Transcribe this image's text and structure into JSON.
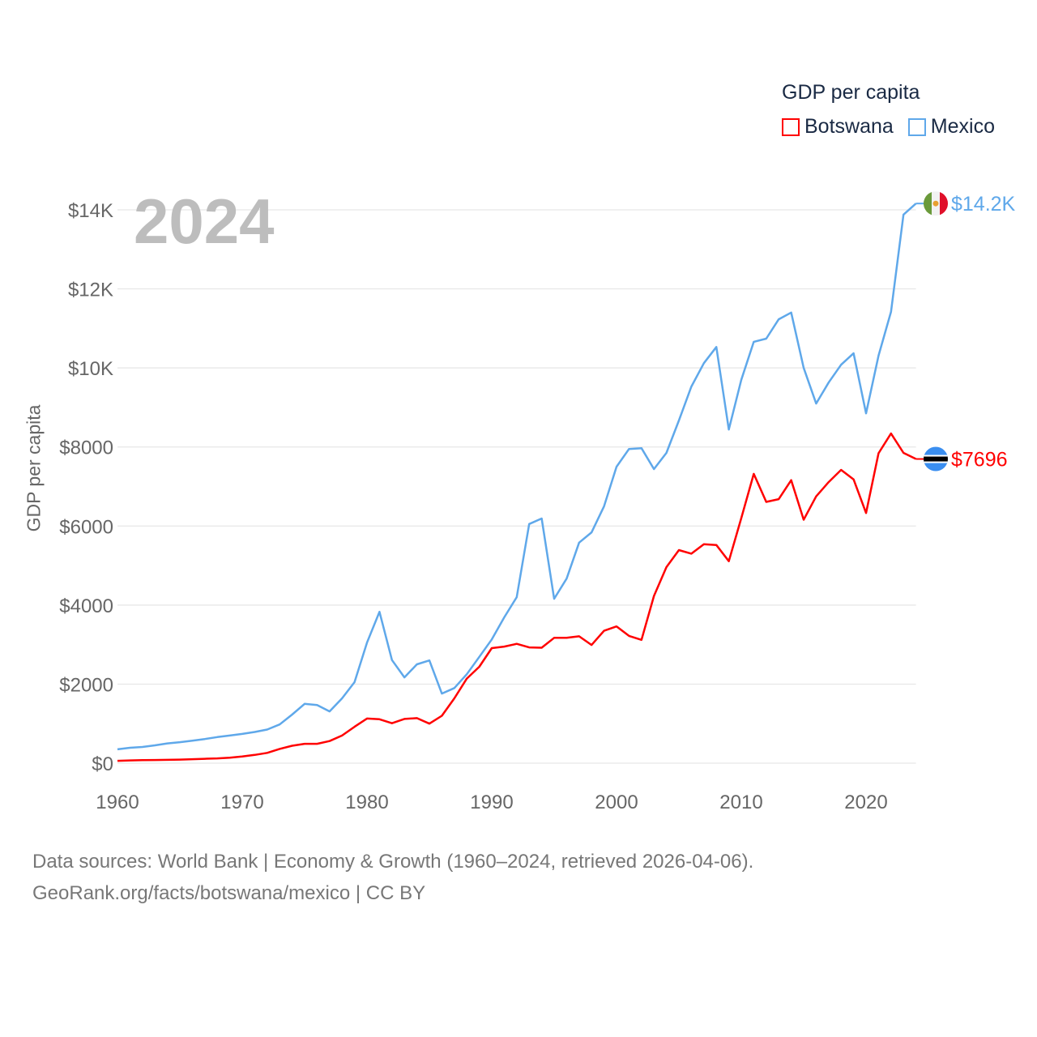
{
  "chart_data": {
    "type": "line",
    "title": "2024",
    "xlabel": "",
    "ylabel": "GDP per capita",
    "legend_title": "GDP per capita",
    "legend_position": "top-right",
    "xlim": [
      1960,
      2024
    ],
    "ylim": [
      0,
      14000
    ],
    "x_ticks": [
      1960,
      1970,
      1980,
      1990,
      2000,
      2010,
      2020
    ],
    "y_ticks": [
      0,
      2000,
      4000,
      6000,
      8000,
      10000,
      12000,
      14000
    ],
    "y_tick_labels": [
      "$0",
      "$2000",
      "$4000",
      "$6000",
      "$8000",
      "$10K",
      "$12K",
      "$14K"
    ],
    "grid": true,
    "x_start": 1960,
    "series": [
      {
        "name": "Botswana",
        "color": "#ff0000",
        "end_label": "$7696",
        "flag": "botswana-flag",
        "values": [
          60,
          70,
          75,
          80,
          85,
          90,
          100,
          110,
          120,
          140,
          170,
          210,
          260,
          360,
          440,
          490,
          490,
          560,
          700,
          920,
          1130,
          1110,
          1010,
          1120,
          1140,
          1000,
          1200,
          1640,
          2140,
          2440,
          2910,
          2950,
          3020,
          2930,
          2920,
          3170,
          3170,
          3210,
          2990,
          3350,
          3460,
          3220,
          3120,
          4230,
          4960,
          5390,
          5300,
          5540,
          5520,
          5110,
          6200,
          7320,
          6610,
          6680,
          7160,
          6160,
          6750,
          7110,
          7420,
          7180,
          6330,
          7840,
          8340,
          7850,
          7696
        ]
      },
      {
        "name": "Mexico",
        "color": "#5fa8ea",
        "end_label": "$14.2K",
        "flag": "mexico-flag",
        "values": [
          350,
          390,
          410,
          450,
          500,
          530,
          570,
          610,
          660,
          700,
          740,
          790,
          850,
          980,
          1230,
          1500,
          1470,
          1310,
          1640,
          2050,
          3050,
          3830,
          2610,
          2170,
          2500,
          2600,
          1760,
          1900,
          2250,
          2690,
          3130,
          3690,
          4200,
          6050,
          6190,
          4160,
          4670,
          5580,
          5840,
          6500,
          7500,
          7950,
          7970,
          7440,
          7850,
          8670,
          9530,
          10120,
          10530,
          8440,
          9700,
          10660,
          10740,
          11230,
          11400,
          10000,
          9100,
          9630,
          10080,
          10370,
          8850,
          10310,
          11420,
          13880,
          14160
        ]
      }
    ]
  },
  "footer": {
    "line1": "Data sources: World Bank | Economy & Growth (1960–2024, retrieved 2026-04-06).",
    "line2": "GeoRank.org/facts/botswana/mexico | CC BY"
  }
}
